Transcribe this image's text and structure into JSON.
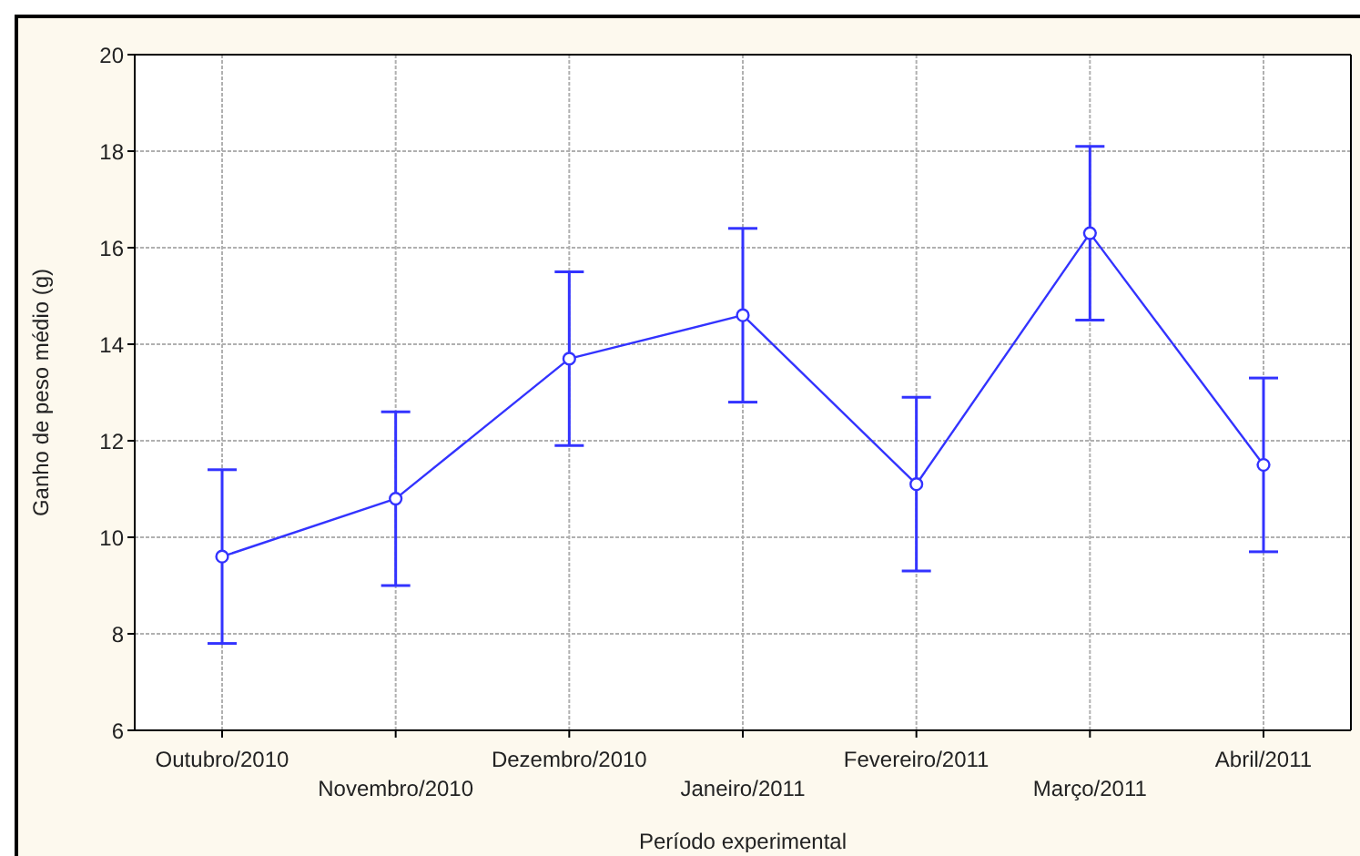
{
  "chart_data": {
    "type": "line",
    "xlabel": "Período experimental",
    "ylabel": "Ganho de peso médio (g)",
    "categories": [
      "Outubro/2010",
      "Novembro/2010",
      "Dezembro/2010",
      "Janeiro/2011",
      "Fevereiro/2011",
      "Março/2011",
      "Abril/2011"
    ],
    "series": [
      {
        "color": "#3333ff",
        "values": [
          9.6,
          10.8,
          13.7,
          14.6,
          11.1,
          16.3,
          11.5
        ],
        "errors": [
          1.8,
          1.8,
          1.8,
          1.8,
          1.8,
          1.8,
          1.8
        ]
      }
    ],
    "ylim": [
      6,
      20
    ],
    "yticks": [
      6,
      8,
      10,
      12,
      14,
      16,
      18,
      20
    ],
    "grid": true,
    "marker": "circle",
    "line_style": "solid",
    "legend": false
  }
}
